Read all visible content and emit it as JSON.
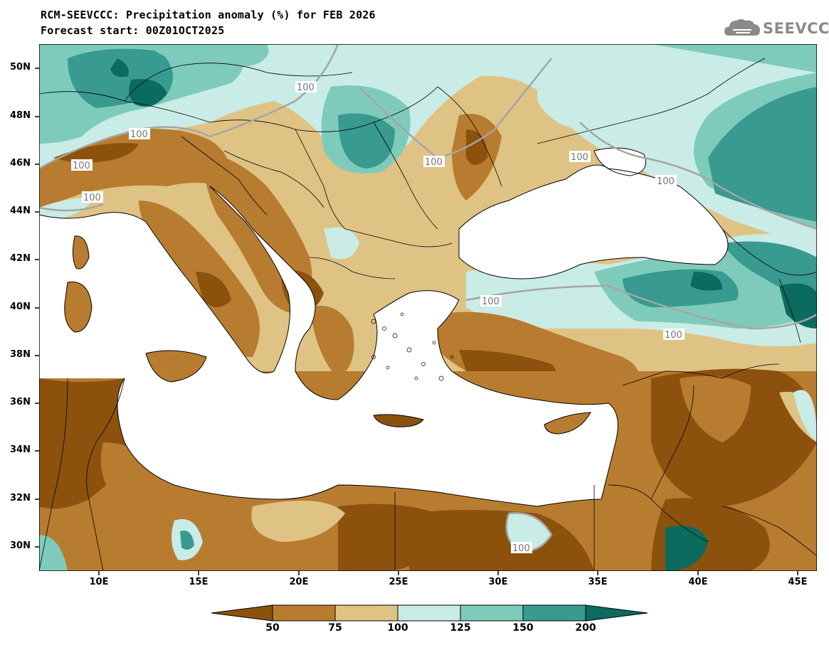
{
  "title_line1": "RCM-SEEVCCC: Precipitation anomaly (%) for FEB 2026",
  "title_line2": "Forecast start: 00Z01OCT2025",
  "logo_text": "SEEVCCC",
  "latitude_labels": [
    "50N",
    "48N",
    "46N",
    "44N",
    "42N",
    "40N",
    "38N",
    "36N",
    "34N",
    "32N",
    "30N"
  ],
  "longitude_labels": [
    "10E",
    "15E",
    "20E",
    "25E",
    "30E",
    "35E",
    "40E",
    "45E"
  ],
  "colorbar": {
    "labels": [
      "50",
      "75",
      "100",
      "125",
      "150",
      "200"
    ],
    "colors": [
      "#8c520d",
      "#b87c30",
      "#dfc384",
      "#c9ece6",
      "#7ecbbc",
      "#399a8f",
      "#0b6b5f"
    ]
  },
  "contour_label": "100",
  "colors": {
    "sea": "#ffffff",
    "border": "#000000",
    "contour": "#a5a5a5"
  }
}
